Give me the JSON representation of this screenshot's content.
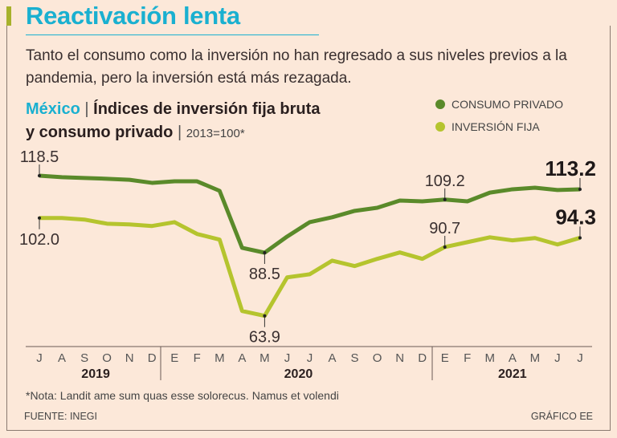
{
  "header": {
    "title": "Reactivación lenta",
    "subtitle": "Tanto el consumo como la inversión no han regresado a sus niveles previos a la pandemia, pero la inversión está más rezagada."
  },
  "chart_data": {
    "type": "line",
    "title_region": "México",
    "title_line1": "Índices de inversión fija bruta",
    "title_line2": "y consumo privado",
    "base": "2013=100*",
    "separator": "|",
    "x_months": [
      "J",
      "A",
      "S",
      "O",
      "N",
      "D",
      "E",
      "F",
      "M",
      "A",
      "M",
      "J",
      "J",
      "A",
      "S",
      "O",
      "N",
      "D",
      "E",
      "F",
      "M",
      "A",
      "M",
      "J",
      "J"
    ],
    "years": [
      {
        "label": "2019",
        "start": 0,
        "end": 5
      },
      {
        "label": "2020",
        "start": 6,
        "end": 17
      },
      {
        "label": "2021",
        "start": 18,
        "end": 24
      }
    ],
    "series": [
      {
        "name": "CONSUMO PRIVADO",
        "color": "#5a8a2a",
        "values": [
          118.5,
          117.9,
          117.6,
          117.3,
          116.9,
          115.7,
          116.3,
          116.3,
          112.6,
          90.4,
          88.5,
          94.8,
          100.4,
          102.3,
          104.8,
          106.0,
          108.8,
          108.5,
          109.2,
          108.5,
          111.9,
          113.2,
          113.8,
          112.9,
          113.2
        ]
      },
      {
        "name": "INVERSIÓN FIJA",
        "color": "#b5c42e",
        "values": [
          102.0,
          102.0,
          101.4,
          99.8,
          99.5,
          98.9,
          100.4,
          95.8,
          93.6,
          65.8,
          63.9,
          78.9,
          80.1,
          85.4,
          83.3,
          86.1,
          88.6,
          86.1,
          90.7,
          92.6,
          94.5,
          93.3,
          94.2,
          91.7,
          94.3
        ]
      }
    ],
    "annotations": [
      {
        "series": 0,
        "index": 0,
        "label": "118.5",
        "pos": "above",
        "bold": false
      },
      {
        "series": 1,
        "index": 0,
        "label": "102.0",
        "pos": "below",
        "bold": false
      },
      {
        "series": 0,
        "index": 10,
        "label": "88.5",
        "pos": "below",
        "bold": false
      },
      {
        "series": 1,
        "index": 10,
        "label": "63.9",
        "pos": "below",
        "bold": false
      },
      {
        "series": 0,
        "index": 18,
        "label": "109.2",
        "pos": "above",
        "bold": false
      },
      {
        "series": 1,
        "index": 18,
        "label": "90.7",
        "pos": "above",
        "bold": false
      },
      {
        "series": 0,
        "index": 24,
        "label": "113.2",
        "pos": "above",
        "bold": true
      },
      {
        "series": 1,
        "index": 24,
        "label": "94.3",
        "pos": "above",
        "bold": true
      }
    ],
    "legend_position": "top-right",
    "grid": false
  },
  "footer": {
    "note": "*Nota: Landit ame sum quas esse solorecus. Namus et volendi",
    "source": "FUENTE: INEGI",
    "credit": "GRÁFICO EE"
  }
}
